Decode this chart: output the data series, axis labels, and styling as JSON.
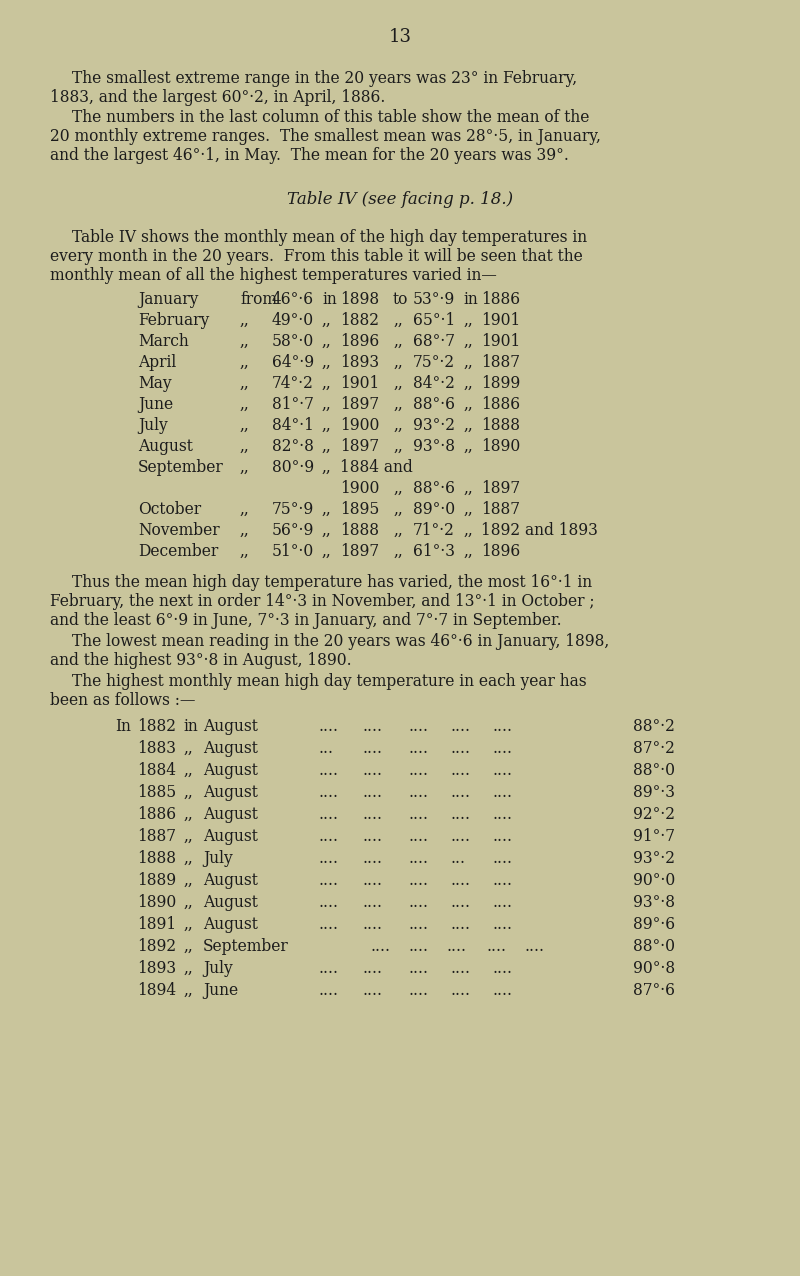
{
  "page_number": "13",
  "background_color": "#c9c59c",
  "text_color": "#1c1c1c",
  "para1_line1": "The smallest extreme range in the 20 years was 23° in February,",
  "para1_line2": "1883, and the largest 60°·2, in April, 1886.",
  "para2_line1": "The numbers in the last column of this table show the mean of the",
  "para2_line2": "20 monthly extreme ranges.  The smallest mean was 28°·5, in January,",
  "para2_line3": "and the largest 46°·1, in May.  The mean for the 20 years was 39°.",
  "table_title": "Table IV (see facing p. 18.)",
  "intro_line1": "Table IV shows the monthly mean of the high day temperatures in",
  "intro_line2": "every month in the 20 years.  From this table it will be seen that the",
  "intro_line3": "monthly mean of all the highest temperatures varied in—",
  "month_rows": [
    {
      "month": "January",
      "conn1": "from",
      "val1": "46°·6",
      "prep1": "in",
      "yr1": "1898",
      "conn2": "to",
      "val2": "53°·9",
      "prep2": "in",
      "yr2": "1886"
    },
    {
      "month": "February",
      "conn1": ",,",
      "val1": "49°·0",
      "prep1": ",,",
      "yr1": "1882",
      "conn2": ",,",
      "val2": "65°·1",
      "prep2": ",,",
      "yr2": "1901"
    },
    {
      "month": "March",
      "conn1": ",,",
      "val1": "58°·0",
      "prep1": ",,",
      "yr1": "1896",
      "conn2": ",,",
      "val2": "68°·7",
      "prep2": ",,",
      "yr2": "1901"
    },
    {
      "month": "April",
      "conn1": ",,",
      "val1": "64°·9",
      "prep1": ",,",
      "yr1": "1893",
      "conn2": ",,",
      "val2": "75°·2",
      "prep2": ",,",
      "yr2": "1887"
    },
    {
      "month": "May",
      "conn1": ",,",
      "val1": "74°·2",
      "prep1": ",,",
      "yr1": "1901",
      "conn2": ",,",
      "val2": "84°·2",
      "prep2": ",,",
      "yr2": "1899"
    },
    {
      "month": "June",
      "conn1": ",,",
      "val1": "81°·7",
      "prep1": ",,",
      "yr1": "1897",
      "conn2": ",,",
      "val2": "88°·6",
      "prep2": ",,",
      "yr2": "1886"
    },
    {
      "month": "July",
      "conn1": ",,",
      "val1": "84°·1",
      "prep1": ",,",
      "yr1": "1900",
      "conn2": ",,",
      "val2": "93°·2",
      "prep2": ",,",
      "yr2": "1888"
    },
    {
      "month": "August",
      "conn1": ",,",
      "val1": "82°·8",
      "prep1": ",,",
      "yr1": "1897",
      "conn2": ",,",
      "val2": "93°·8",
      "prep2": ",,",
      "yr2": "1890"
    },
    {
      "month": "September",
      "conn1": ",,",
      "val1": "80°·9",
      "prep1": ",,",
      "yr1": "1884 and",
      "conn2": "",
      "val2": "",
      "prep2": "",
      "yr2": ""
    },
    {
      "month": "",
      "conn1": "",
      "val1": "",
      "prep1": "",
      "yr1": "1900",
      "conn2": ",,",
      "val2": "88°·6",
      "prep2": ",,",
      "yr2": "1897"
    },
    {
      "month": "October",
      "conn1": ",,",
      "val1": "75°·9",
      "prep1": ",,",
      "yr1": "1895",
      "conn2": ",,",
      "val2": "89°·0",
      "prep2": ",,",
      "yr2": "1887"
    },
    {
      "month": "November",
      "conn1": ",,",
      "val1": "56°·9",
      "prep1": ",,",
      "yr1": "1888",
      "conn2": ",,",
      "val2": "71°·2",
      "prep2": ",,",
      "yr2": "1892 and 1893"
    },
    {
      "month": "December",
      "conn1": ",,",
      "val1": "51°·0",
      "prep1": ",,",
      "yr1": "1897",
      "conn2": ",,",
      "val2": "61°·3",
      "prep2": ",,",
      "yr2": "1896"
    }
  ],
  "para3_line1": "Thus the mean high day temperature has varied, the most 16°·1 in",
  "para3_line2": "February, the next in order 14°·3 in November, and 13°·1 in October ;",
  "para3_line3": "and the least 6°·9 in June, 7°·3 in January, and 7°·7 in September.",
  "para4_line1": "The lowest mean reading in the 20 years was 46°·6 in January, 1898,",
  "para4_line2": "and the highest 93°·8 in August, 1890.",
  "para5_line1": "The highest monthly mean high day temperature in each year has",
  "para5_line2": "been as follows :—",
  "year_rows": [
    {
      "prefix": "In",
      "year": "1882",
      "conn": "in",
      "month": "August",
      "dots": "....   ....   ....    ....   ....",
      "val": "88°·2"
    },
    {
      "prefix": "",
      "year": "1883",
      "conn": ",,",
      "month": "August",
      "dots": "...    ....   ....    ....   ....",
      "val": "87°·2"
    },
    {
      "prefix": "",
      "year": "1884",
      "conn": ",,",
      "month": "August",
      "dots": "....   ....   ....    ....   ....",
      "val": "88°·0"
    },
    {
      "prefix": "",
      "year": "1885",
      "conn": ",,",
      "month": "August",
      "dots": "....   ....   ....    ....   ....",
      "val": "89°·3"
    },
    {
      "prefix": "",
      "year": "1886",
      "conn": ",,",
      "month": "August",
      "dots": "....   ....   ....    ....   ....",
      "val": "92°·2"
    },
    {
      "prefix": "",
      "year": "1887",
      "conn": ",,",
      "month": "August",
      "dots": "....   ....   ....    ....   ....",
      "val": "91°·7"
    },
    {
      "prefix": "",
      "year": "1888",
      "conn": ",,",
      "month": "July",
      "dots": "....   ....   ....     ...   ....",
      "val": "93°·2"
    },
    {
      "prefix": "",
      "year": "1889",
      "conn": ",,",
      "month": "August",
      "dots": "....   ....   ....    ....   ....",
      "val": "90°·0"
    },
    {
      "prefix": "",
      "year": "1890",
      "conn": ",,",
      "month": "August",
      "dots": "....   ....   ....    ....   ....",
      "val": "93°·8"
    },
    {
      "prefix": "",
      "year": "1891",
      "conn": ",,",
      "month": "August",
      "dots": "....   ....   ....    ....   ....",
      "val": "89°·6"
    },
    {
      "prefix": "",
      "year": "1892",
      "conn": ",,",
      "month": "September",
      "dots": "....   ....   ....    ....   ....",
      "val": "88°·0"
    },
    {
      "prefix": "",
      "year": "1893",
      "conn": ",,",
      "month": "July",
      "dots": "....   ....   ....    ....   ....",
      "val": "90°·8"
    },
    {
      "prefix": "",
      "year": "1894",
      "conn": ",,",
      "month": "June",
      "dots": "....   ....   ....    ....   ....",
      "val": "87°·6"
    }
  ]
}
